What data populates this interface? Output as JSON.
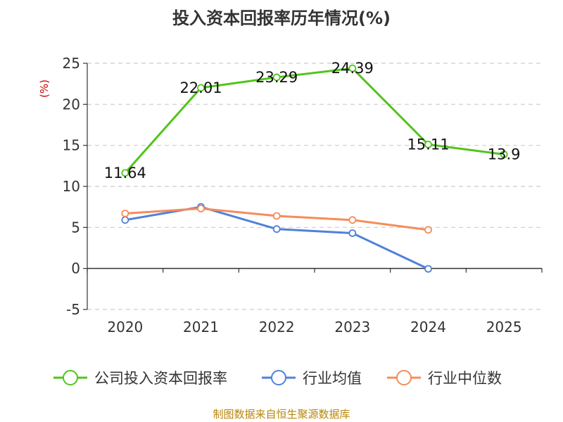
{
  "chart_data": {
    "type": "line",
    "title": "投入资本回报率历年情况(%)",
    "ylabel": "(%)",
    "categories": [
      "2020",
      "2021",
      "2022",
      "2023",
      "2024",
      "2025"
    ],
    "ylim": [
      -5,
      25
    ],
    "yticks": [
      "25",
      "20",
      "15",
      "10",
      "5",
      "0",
      "-5"
    ],
    "grid": true,
    "legend_position": "bottom",
    "series": [
      {
        "name": "公司投入资本回报率",
        "color": "#52c41a",
        "values": [
          11.64,
          22.01,
          23.29,
          24.39,
          15.11,
          13.9
        ],
        "labels": [
          "11.64",
          "22.01",
          "23.29",
          "24.39",
          "15.11",
          "13.9"
        ]
      },
      {
        "name": "行业均值",
        "color": "#4f81d9",
        "values": [
          5.9,
          7.5,
          4.8,
          4.3,
          -0.05,
          null
        ]
      },
      {
        "name": "行业中位数",
        "color": "#f58c5a",
        "values": [
          6.7,
          7.3,
          6.4,
          5.9,
          4.7,
          null
        ]
      }
    ]
  },
  "source_text": "制图数据来自恒生聚源数据库"
}
